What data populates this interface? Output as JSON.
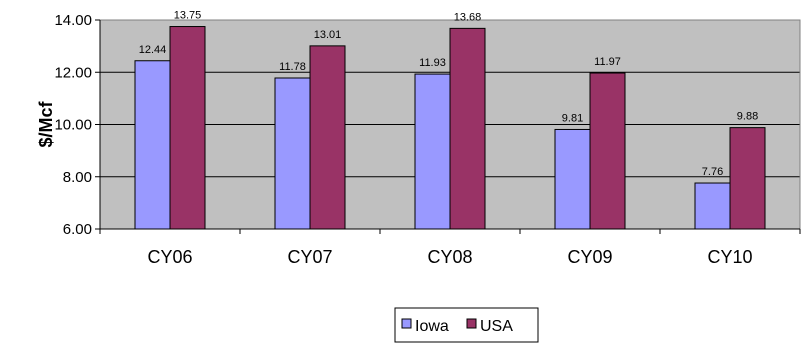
{
  "chart_data": {
    "type": "bar",
    "categories": [
      "CY06",
      "CY07",
      "CY08",
      "CY09",
      "CY10"
    ],
    "series": [
      {
        "name": "Iowa",
        "values": [
          12.44,
          11.78,
          11.93,
          9.81,
          7.76
        ],
        "value_labels": [
          "12.44",
          "11.78",
          "11.93",
          "9.81",
          "7.76"
        ],
        "color": "#9999FF"
      },
      {
        "name": "USA",
        "values": [
          13.75,
          13.01,
          13.68,
          11.97,
          9.88
        ],
        "value_labels": [
          "13.75",
          "13.01",
          "13.68",
          "11.97",
          "9.88"
        ],
        "color": "#993366"
      }
    ],
    "ylabel": "$/Mcf",
    "ylim": [
      6,
      14
    ],
    "yticks": [
      "6.00",
      "8.00",
      "10.00",
      "12.00",
      "14.00"
    ],
    "ytick_values": [
      6,
      8,
      10,
      12,
      14
    ],
    "grid": true,
    "plot_background": "#C0C0C0",
    "legend_position": "bottom"
  }
}
